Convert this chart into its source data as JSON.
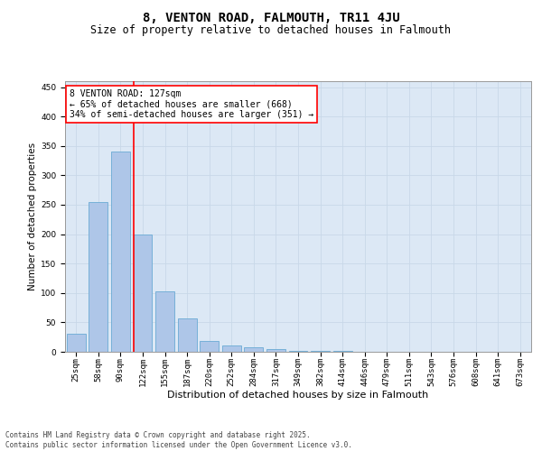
{
  "title": "8, VENTON ROAD, FALMOUTH, TR11 4JU",
  "subtitle": "Size of property relative to detached houses in Falmouth",
  "xlabel": "Distribution of detached houses by size in Falmouth",
  "ylabel": "Number of detached properties",
  "categories": [
    "25sqm",
    "58sqm",
    "90sqm",
    "122sqm",
    "155sqm",
    "187sqm",
    "220sqm",
    "252sqm",
    "284sqm",
    "317sqm",
    "349sqm",
    "382sqm",
    "414sqm",
    "446sqm",
    "479sqm",
    "511sqm",
    "543sqm",
    "576sqm",
    "608sqm",
    "641sqm",
    "673sqm"
  ],
  "values": [
    30,
    255,
    340,
    200,
    103,
    57,
    18,
    10,
    7,
    4,
    2,
    1,
    1,
    0,
    0,
    0,
    0,
    0,
    0,
    0,
    0
  ],
  "bar_color": "#aec6e8",
  "bar_edge_color": "#6aaad4",
  "vline_color": "red",
  "vline_x_index": 3,
  "annotation_text": "8 VENTON ROAD: 127sqm\n← 65% of detached houses are smaller (668)\n34% of semi-detached houses are larger (351) →",
  "annotation_box_color": "white",
  "annotation_box_edge": "red",
  "grid_color": "#c8d8e8",
  "background_color": "#dce8f5",
  "ylim": [
    0,
    460
  ],
  "yticks": [
    0,
    50,
    100,
    150,
    200,
    250,
    300,
    350,
    400,
    450
  ],
  "footer_line1": "Contains HM Land Registry data © Crown copyright and database right 2025.",
  "footer_line2": "Contains public sector information licensed under the Open Government Licence v3.0.",
  "title_fontsize": 10,
  "subtitle_fontsize": 8.5,
  "xlabel_fontsize": 8,
  "ylabel_fontsize": 7.5,
  "tick_fontsize": 6.5,
  "annotation_fontsize": 7,
  "footer_fontsize": 5.5
}
